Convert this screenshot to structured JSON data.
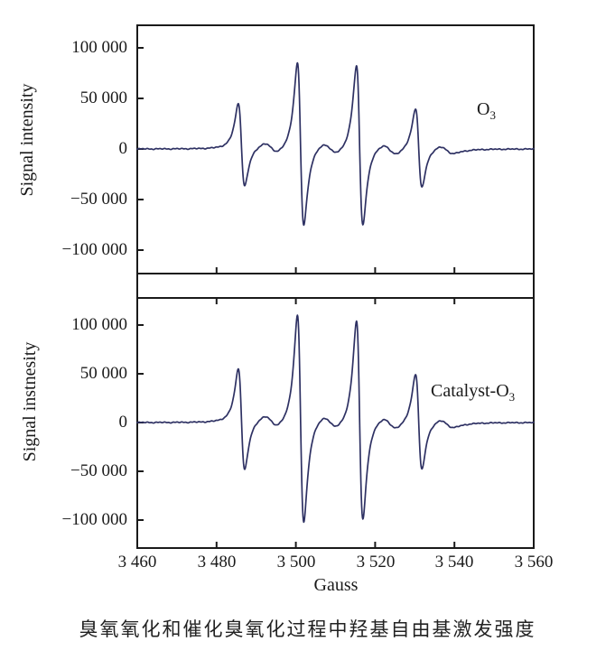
{
  "chart_data": {
    "type": "line",
    "title": "",
    "xlabel": "Gauss",
    "x_range": [
      3460,
      3560
    ],
    "x_ticks": [
      3480,
      3500,
      3520,
      3540
    ],
    "x_tick_labels": [
      "3 460",
      "3 480",
      "3 500",
      "3 520",
      "3 540",
      "3 560"
    ],
    "x_tick_label_values": [
      3460,
      3480,
      3500,
      3520,
      3540,
      3560
    ],
    "line_color": "#2e3163",
    "frame_color": "#1a1a1a",
    "grid": false,
    "legend_position": "none",
    "description": "EPR spectra (first-derivative lineshape), DMPO-OH 1:2:2:1 quartet, two stacked panels sharing the Gauss x-axis",
    "panels": [
      {
        "name": "ozone",
        "label": {
          "text": "O",
          "sub": "3"
        },
        "ylabel": "Signal intensity",
        "ylim": [
          -122800,
          122800
        ],
        "y_ticks": [
          100000,
          50000,
          0,
          -50000,
          -100000
        ],
        "y_tick_labels": [
          "100 000",
          "50 000",
          "0",
          "−50 000",
          "−100 000"
        ],
        "peaks": {
          "pattern": "1:2:2:1",
          "centers_gauss": [
            3486.3,
            3501.2,
            3516.1,
            3531.0
          ],
          "pos_amplitudes": [
            44000,
            85000,
            83000,
            41000
          ],
          "neg_amplitudes": [
            -38000,
            -76000,
            -75000,
            -38000
          ],
          "linewidth_gauss": 1.4,
          "mid_bumps": {
            "centers_gauss": [
              3493.8,
              3508.7,
              3523.6,
              3538.0
            ],
            "amplitudes": [
              5200,
              5800,
              5400,
              3800
            ],
            "width_gauss": 3.2
          }
        }
      },
      {
        "name": "catalyst-ozone",
        "label": {
          "text": "Catalyst-O",
          "sub": "3"
        },
        "ylabel": "Signal instnesity",
        "ylim": [
          -128000,
          128000
        ],
        "y_ticks": [
          100000,
          50000,
          0,
          -50000,
          -100000
        ],
        "y_tick_labels": [
          "100 000",
          "50 000",
          "0",
          "−50 000",
          "−100 000"
        ],
        "peaks": {
          "pattern": "1:2:2:1",
          "centers_gauss": [
            3486.3,
            3501.2,
            3516.1,
            3531.0
          ],
          "pos_amplitudes": [
            54000,
            110000,
            105000,
            51000
          ],
          "neg_amplitudes": [
            -50000,
            -103000,
            -99000,
            -48000
          ],
          "linewidth_gauss": 1.4,
          "mid_bumps": {
            "centers_gauss": [
              3493.8,
              3508.7,
              3523.6,
              3538.0
            ],
            "amplitudes": [
              6200,
              6800,
              6200,
              4200
            ],
            "width_gauss": 3.2
          }
        }
      }
    ],
    "caption": "臭氧氧化和催化臭氧化过程中羟基自由基激发强度"
  }
}
